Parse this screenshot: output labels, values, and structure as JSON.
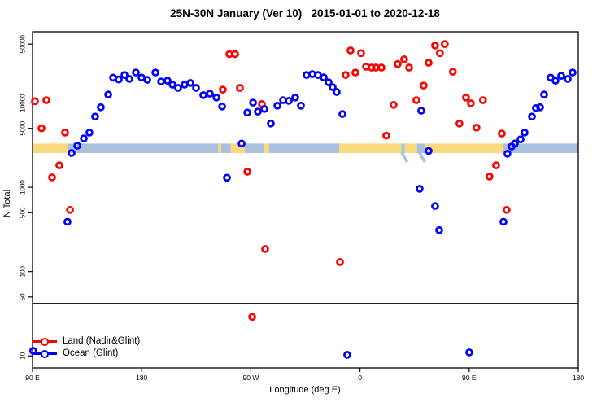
{
  "chart_data": {
    "type": "scatter",
    "title": "25N-30N January (Ver 10)   2015-01-01 to 2020-12-18",
    "xlabel": "Longitude (deg E)",
    "ylabel": "N Total",
    "x_axis": {
      "range_deg_e": [
        90,
        540
      ],
      "ticks": [
        {
          "lon": 90,
          "label": "90 E"
        },
        {
          "lon": 180,
          "label": "180"
        },
        {
          "lon": 270,
          "label": "90 W"
        },
        {
          "lon": 360,
          "label": "0"
        },
        {
          "lon": 450,
          "label": "90 E"
        },
        {
          "lon": 540,
          "label": "180"
        }
      ]
    },
    "y_axis": {
      "scale": "log",
      "range": [
        7.2,
        70000
      ],
      "ticks": [
        {
          "value": 10,
          "label": "10"
        },
        {
          "value": 50,
          "label": "50"
        },
        {
          "value": 100,
          "label": "100"
        },
        {
          "value": 500,
          "label": "500"
        },
        {
          "value": 1000,
          "label": "1000"
        },
        {
          "value": 5000,
          "label": "5000"
        },
        {
          "value": 10000,
          "label": "10000"
        },
        {
          "value": 50000,
          "label": "50000"
        }
      ]
    },
    "threshold_line": {
      "value": 42,
      "color": "#000000"
    },
    "coast_band": {
      "value_range": [
        2550,
        3300
      ],
      "land_color": "#fad97f",
      "ocean_color": "#a9c0de",
      "segments": [
        {
          "from": 90,
          "to": 119,
          "type": "land"
        },
        {
          "from": 119,
          "to": 243,
          "type": "ocean"
        },
        {
          "from": 243,
          "to": 245.5,
          "type": "land"
        },
        {
          "from": 245.5,
          "to": 253.5,
          "type": "ocean"
        },
        {
          "from": 253.5,
          "to": 265,
          "type": "land"
        },
        {
          "from": 265,
          "to": 281,
          "type": "ocean"
        },
        {
          "from": 281,
          "to": 285,
          "type": "land"
        },
        {
          "from": 285,
          "to": 343,
          "type": "ocean"
        },
        {
          "from": 343,
          "to": 394,
          "type": "land"
        },
        {
          "from": 394,
          "to": 397,
          "type": "ocean"
        },
        {
          "from": 397,
          "to": 407,
          "type": "land"
        },
        {
          "from": 407,
          "to": 414,
          "type": "ocean"
        },
        {
          "from": 414,
          "to": 478,
          "type": "land"
        },
        {
          "from": 478,
          "to": 540,
          "type": "ocean"
        }
      ],
      "slivers": [
        {
          "lon": 394.3,
          "type": "ocean"
        },
        {
          "lon": 408.8,
          "type": "ocean"
        }
      ]
    },
    "series": [
      {
        "id": "land",
        "name": "Land (Nadir&Glint)",
        "color": "#ff0000",
        "points": [
          [
            92.0,
            10500
          ],
          [
            101.4,
            10800
          ],
          [
            97.4,
            5000
          ],
          [
            116.8,
            4450
          ],
          [
            112.1,
            1820
          ],
          [
            106.1,
            1310
          ],
          [
            120.9,
            540
          ],
          [
            252.3,
            38000
          ],
          [
            257.0,
            38000
          ],
          [
            246.9,
            14400
          ],
          [
            261.0,
            15100
          ],
          [
            279.1,
            9700
          ],
          [
            267.1,
            1530
          ],
          [
            281.8,
            185
          ],
          [
            343.5,
            130
          ],
          [
            271.1,
            29
          ],
          [
            348.2,
            21500
          ],
          [
            352.2,
            42000
          ],
          [
            356.2,
            23000
          ],
          [
            360.9,
            39000
          ],
          [
            365.0,
            27000
          ],
          [
            369.6,
            26300
          ],
          [
            373.0,
            26300
          ],
          [
            377.7,
            26300
          ],
          [
            381.7,
            4100
          ],
          [
            387.7,
            9500
          ],
          [
            391.1,
            29000
          ],
          [
            396.4,
            33000
          ],
          [
            400.5,
            26300
          ],
          [
            406.5,
            10800
          ],
          [
            412.5,
            16100
          ],
          [
            416.6,
            30000
          ],
          [
            421.9,
            48000
          ],
          [
            425.9,
            39000
          ],
          [
            429.9,
            50000
          ],
          [
            436.6,
            23500
          ],
          [
            442.0,
            5700
          ],
          [
            447.4,
            11600
          ],
          [
            451.4,
            9900
          ],
          [
            456.1,
            5100
          ],
          [
            461.4,
            10800
          ],
          [
            466.8,
            1340
          ],
          [
            472.2,
            1820
          ],
          [
            476.9,
            4340
          ],
          [
            480.9,
            540
          ]
        ]
      },
      {
        "id": "ocean",
        "name": "Ocean (Glint)",
        "color": "#0000ff",
        "points": [
          [
            90.5,
            11.5
          ],
          [
            118.8,
            390
          ],
          [
            122.2,
            2550
          ],
          [
            126.9,
            3110
          ],
          [
            132.3,
            3800
          ],
          [
            136.9,
            4450
          ],
          [
            141.6,
            6900
          ],
          [
            146.3,
            8900
          ],
          [
            152.4,
            12600
          ],
          [
            156.4,
            20000
          ],
          [
            161.1,
            19000
          ],
          [
            165.8,
            21500
          ],
          [
            169.8,
            19300
          ],
          [
            175.2,
            23000
          ],
          [
            179.9,
            20000
          ],
          [
            184.6,
            18800
          ],
          [
            191.3,
            23000
          ],
          [
            196.0,
            18000
          ],
          [
            201.3,
            18400
          ],
          [
            205.4,
            16500
          ],
          [
            210.0,
            15100
          ],
          [
            215.4,
            16500
          ],
          [
            220.1,
            17300
          ],
          [
            224.8,
            15100
          ],
          [
            230.8,
            12400
          ],
          [
            236.2,
            12900
          ],
          [
            241.6,
            11600
          ],
          [
            246.3,
            9100
          ],
          [
            250.3,
            1300
          ],
          [
            262.4,
            3300
          ],
          [
            267.1,
            7700
          ],
          [
            271.8,
            10100
          ],
          [
            275.8,
            7900
          ],
          [
            281.1,
            8500
          ],
          [
            286.5,
            5700
          ],
          [
            291.9,
            9300
          ],
          [
            296.6,
            10800
          ],
          [
            301.3,
            10600
          ],
          [
            306.6,
            11600
          ],
          [
            311.3,
            9300
          ],
          [
            316.0,
            21500
          ],
          [
            320.7,
            22000
          ],
          [
            325.4,
            21500
          ],
          [
            330.1,
            20100
          ],
          [
            334.1,
            17600
          ],
          [
            337.5,
            15400
          ],
          [
            340.8,
            13500
          ],
          [
            345.5,
            7400
          ],
          [
            349.5,
            10.3
          ],
          [
            409.2,
            960
          ],
          [
            410.5,
            8100
          ],
          [
            416.6,
            2700
          ],
          [
            421.9,
            600
          ],
          [
            425.3,
            310
          ],
          [
            450.1,
            11
          ],
          [
            478.3,
            390
          ],
          [
            481.6,
            2500
          ],
          [
            485.0,
            3040
          ],
          [
            487.7,
            3300
          ],
          [
            492.4,
            3700
          ],
          [
            495.7,
            4450
          ],
          [
            501.8,
            6900
          ],
          [
            505.1,
            8700
          ],
          [
            508.5,
            8900
          ],
          [
            511.8,
            12600
          ],
          [
            517.2,
            20000
          ],
          [
            521.2,
            18400
          ],
          [
            525.9,
            21000
          ],
          [
            531.3,
            19300
          ],
          [
            535.3,
            23000
          ]
        ]
      }
    ]
  },
  "legend": {
    "items": [
      {
        "label": "Land (Nadir&Glint)",
        "color": "#ff0000"
      },
      {
        "label": "Ocean (Glint)",
        "color": "#0000ff"
      }
    ]
  }
}
